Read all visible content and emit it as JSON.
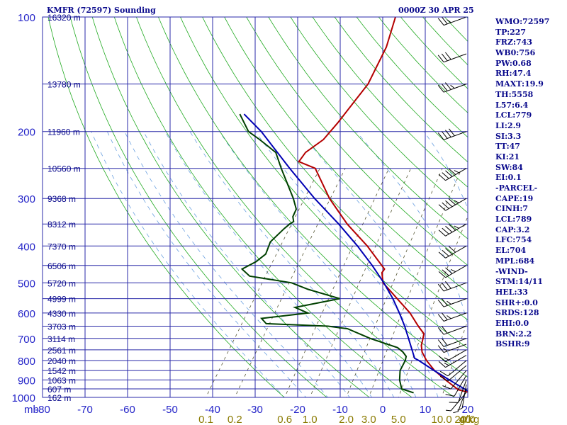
{
  "header": {
    "station": "KMFR (72597) Sounding",
    "time": "0000Z 30 APR 25"
  },
  "indices": [
    "WMO:72597",
    "TP:227",
    "FRZ:743",
    "WB0:756",
    "PW:0.68",
    "RH:47.4",
    "MAXT:19.9",
    "TH:5558",
    "L57:6.4",
    "LCL:779",
    "LI:2.9",
    "SI:3.3",
    "TT:47",
    "KI:21",
    "SW:84",
    "EI:0.1",
    "-PARCEL-",
    "CAPE:19",
    "CINH:7",
    "LCL:789",
    "CAP:3.2",
    "LFC:754",
    "EL:704",
    "MPL:684",
    "-WIND-",
    "STM:14/11",
    "HEL:33",
    "SHR+:0.0",
    "SRDS:128",
    "EHI:0.0",
    "BRN:2.2",
    "BSHR:9"
  ],
  "chart_data": {
    "type": "line",
    "title": "",
    "x_axis": {
      "unit_label": "mb",
      "range": [
        -80,
        20
      ],
      "ticks": [
        -80,
        -70,
        -60,
        -50,
        -40,
        -30,
        -20,
        -10,
        0,
        10,
        20
      ],
      "tick_labels": [
        "-80",
        "-70",
        "-60",
        "-50",
        "-40",
        "-30",
        "-20",
        "-10",
        "0",
        "10",
        "20"
      ]
    },
    "y_axis": {
      "scale": "log-pressure",
      "range": [
        1000,
        100
      ],
      "ticks": [
        100,
        200,
        300,
        400,
        500,
        600,
        700,
        800,
        900,
        1000
      ],
      "tick_labels": [
        "100",
        "200",
        "300",
        "400",
        "500",
        "600",
        "700",
        "800",
        "900",
        "1000"
      ]
    },
    "height_labels": [
      {
        "p": 100,
        "label": "16320 m"
      },
      {
        "p": 150,
        "label": "13780 m"
      },
      {
        "p": 200,
        "label": "11960 m"
      },
      {
        "p": 250,
        "label": "10560 m"
      },
      {
        "p": 300,
        "label": "9368 m"
      },
      {
        "p": 350,
        "label": "8312 m"
      },
      {
        "p": 400,
        "label": "7370 m"
      },
      {
        "p": 450,
        "label": "6506 m"
      },
      {
        "p": 500,
        "label": "5720 m"
      },
      {
        "p": 550,
        "label": "4999 m"
      },
      {
        "p": 600,
        "label": "4330 m"
      },
      {
        "p": 650,
        "label": "3703 m"
      },
      {
        "p": 700,
        "label": "3114 m"
      },
      {
        "p": 750,
        "label": "2561 m"
      },
      {
        "p": 800,
        "label": "2040 m"
      },
      {
        "p": 850,
        "label": "1542 m"
      },
      {
        "p": 900,
        "label": "1063 m"
      },
      {
        "p": 950,
        "label": "607 m"
      },
      {
        "p": 1000,
        "label": "162 m"
      }
    ],
    "mixing_ratio_axis": {
      "unit_label": "g/kg",
      "values": [
        0.1,
        0.2,
        0.6,
        1.0,
        2.0,
        3.0,
        5.0,
        10.0,
        20.0,
        40.0
      ],
      "tick_labels": [
        "0.1",
        "0.2",
        "0.6",
        "1.0",
        "2.0",
        "3.0",
        "5.0",
        "10.0",
        "20.0",
        "40"
      ]
    },
    "skew_deg_per_decade_log_p": 65,
    "isotherms_every": 10,
    "grid": true,
    "series": [
      {
        "color": "#b40000",
        "points": [
          {
            "p": 973,
            "t": 20.0
          },
          {
            "p": 955,
            "t": 16.5
          },
          {
            "p": 900,
            "t": 11.8
          },
          {
            "p": 850,
            "t": 7.6
          },
          {
            "p": 800,
            "t": 4.0
          },
          {
            "p": 760,
            "t": 1.5
          },
          {
            "p": 730,
            "t": 0.2
          },
          {
            "p": 700,
            "t": -0.6
          },
          {
            "p": 680,
            "t": -1.2
          },
          {
            "p": 650,
            "t": -3.8
          },
          {
            "p": 600,
            "t": -8.0
          },
          {
            "p": 550,
            "t": -13.5
          },
          {
            "p": 520,
            "t": -17.0
          },
          {
            "p": 500,
            "t": -19.5
          },
          {
            "p": 470,
            "t": -21.5
          },
          {
            "p": 460,
            "t": -21.5
          },
          {
            "p": 400,
            "t": -29.5
          },
          {
            "p": 350,
            "t": -38.0
          },
          {
            "p": 300,
            "t": -46.5
          },
          {
            "p": 250,
            "t": -55.0
          },
          {
            "p": 240,
            "t": -60.0
          },
          {
            "p": 227,
            "t": -60.0
          },
          {
            "p": 210,
            "t": -58.0
          },
          {
            "p": 190,
            "t": -57.5
          },
          {
            "p": 150,
            "t": -57.0
          },
          {
            "p": 120,
            "t": -59.0
          },
          {
            "p": 100,
            "t": -62.0
          }
        ]
      },
      {
        "color": "#004000",
        "points": [
          {
            "p": 973,
            "t": 6.5
          },
          {
            "p": 950,
            "t": 3.0
          },
          {
            "p": 900,
            "t": 1.0
          },
          {
            "p": 850,
            "t": -0.5
          },
          {
            "p": 800,
            "t": -1.0
          },
          {
            "p": 780,
            "t": -1.5
          },
          {
            "p": 760,
            "t": -3.0
          },
          {
            "p": 740,
            "t": -5.0
          },
          {
            "p": 700,
            "t": -13.0
          },
          {
            "p": 660,
            "t": -20.0
          },
          {
            "p": 650,
            "t": -25.0
          },
          {
            "p": 640,
            "t": -40.0
          },
          {
            "p": 620,
            "t": -42.0
          },
          {
            "p": 600,
            "t": -32.0
          },
          {
            "p": 580,
            "t": -36.0
          },
          {
            "p": 550,
            "t": -27.0
          },
          {
            "p": 520,
            "t": -36.0
          },
          {
            "p": 500,
            "t": -41.0
          },
          {
            "p": 480,
            "t": -52.0
          },
          {
            "p": 460,
            "t": -55.0
          },
          {
            "p": 440,
            "t": -53.0
          },
          {
            "p": 420,
            "t": -52.0
          },
          {
            "p": 390,
            "t": -53.0
          },
          {
            "p": 360,
            "t": -52.0
          },
          {
            "p": 350,
            "t": -51.5
          },
          {
            "p": 345,
            "t": -51.0
          },
          {
            "p": 335,
            "t": -52.0
          },
          {
            "p": 320,
            "t": -52.5
          },
          {
            "p": 300,
            "t": -55.0
          },
          {
            "p": 250,
            "t": -63.0
          },
          {
            "p": 227,
            "t": -67.0
          },
          {
            "p": 210,
            "t": -73.0
          },
          {
            "p": 200,
            "t": -77.0
          },
          {
            "p": 180,
            "t": -82.0
          }
        ]
      },
      {
        "color": "#0000b4",
        "points": [
          {
            "p": 973,
            "t": 20.0
          },
          {
            "p": 900,
            "t": 12.7
          },
          {
            "p": 850,
            "t": 7.5
          },
          {
            "p": 800,
            "t": 2.2
          },
          {
            "p": 789,
            "t": 0.8
          },
          {
            "p": 760,
            "t": -0.7
          },
          {
            "p": 700,
            "t": -4.0
          },
          {
            "p": 650,
            "t": -7.0
          },
          {
            "p": 600,
            "t": -10.5
          },
          {
            "p": 550,
            "t": -14.5
          },
          {
            "p": 500,
            "t": -19.3
          },
          {
            "p": 450,
            "t": -25.0
          },
          {
            "p": 400,
            "t": -31.8
          },
          {
            "p": 350,
            "t": -40.0
          },
          {
            "p": 300,
            "t": -50.0
          },
          {
            "p": 250,
            "t": -61.0
          },
          {
            "p": 200,
            "t": -74.0
          },
          {
            "p": 180,
            "t": -81.0
          }
        ]
      }
    ],
    "wind_barbs": [
      {
        "p": 970,
        "dir": 220,
        "kt": 5
      },
      {
        "p": 950,
        "dir": 200,
        "kt": 5
      },
      {
        "p": 925,
        "dir": 190,
        "kt": 5
      },
      {
        "p": 900,
        "dir": 200,
        "kt": 10
      },
      {
        "p": 875,
        "dir": 210,
        "kt": 10
      },
      {
        "p": 850,
        "dir": 220,
        "kt": 10
      },
      {
        "p": 825,
        "dir": 230,
        "kt": 10
      },
      {
        "p": 800,
        "dir": 230,
        "kt": 10
      },
      {
        "p": 775,
        "dir": 240,
        "kt": 15
      },
      {
        "p": 750,
        "dir": 240,
        "kt": 15
      },
      {
        "p": 725,
        "dir": 250,
        "kt": 15
      },
      {
        "p": 700,
        "dir": 250,
        "kt": 20
      },
      {
        "p": 650,
        "dir": 250,
        "kt": 20
      },
      {
        "p": 600,
        "dir": 250,
        "kt": 25
      },
      {
        "p": 550,
        "dir": 250,
        "kt": 25
      },
      {
        "p": 500,
        "dir": 250,
        "kt": 30
      },
      {
        "p": 450,
        "dir": 240,
        "kt": 35
      },
      {
        "p": 400,
        "dir": 240,
        "kt": 40
      },
      {
        "p": 350,
        "dir": 240,
        "kt": 45
      },
      {
        "p": 300,
        "dir": 240,
        "kt": 45
      },
      {
        "p": 250,
        "dir": 240,
        "kt": 45
      },
      {
        "p": 200,
        "dir": 250,
        "kt": 40
      },
      {
        "p": 150,
        "dir": 250,
        "kt": 35
      },
      {
        "p": 125,
        "dir": 250,
        "kt": 30
      },
      {
        "p": 100,
        "dir": 250,
        "kt": 25
      }
    ]
  }
}
